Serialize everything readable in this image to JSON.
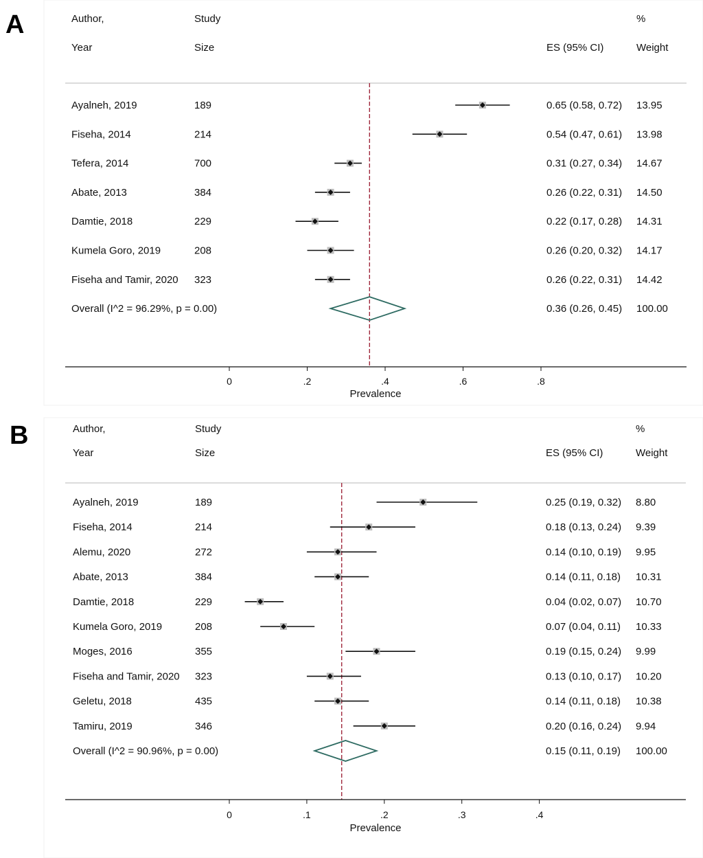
{
  "panels": [
    {
      "letter": "A",
      "headers": {
        "author_line1": "Author,",
        "author_line2": "Year",
        "size_line1": "Study",
        "size_line2": "Size",
        "es": "ES (95% CI)",
        "weight_line1": "%",
        "weight_line2": "Weight"
      },
      "chart_data": {
        "type": "forest",
        "xlabel": "Prevalence",
        "xticks": [
          0,
          0.2,
          0.4,
          0.6,
          0.8
        ],
        "xtick_labels": [
          "0",
          ".2",
          ".4",
          ".6",
          ".8"
        ],
        "reference_line": 0.36,
        "studies": [
          {
            "label": "Ayalneh, 2019",
            "size": "189",
            "es": 0.65,
            "lo": 0.58,
            "hi": 0.72,
            "es_text": "0.65 (0.58, 0.72)",
            "weight": "13.95"
          },
          {
            "label": "Fiseha, 2014",
            "size": "214",
            "es": 0.54,
            "lo": 0.47,
            "hi": 0.61,
            "es_text": "0.54 (0.47, 0.61)",
            "weight": "13.98"
          },
          {
            "label": "Tefera, 2014",
            "size": "700",
            "es": 0.31,
            "lo": 0.27,
            "hi": 0.34,
            "es_text": "0.31 (0.27, 0.34)",
            "weight": "14.67"
          },
          {
            "label": "Abate, 2013",
            "size": "384",
            "es": 0.26,
            "lo": 0.22,
            "hi": 0.31,
            "es_text": "0.26 (0.22, 0.31)",
            "weight": "14.50"
          },
          {
            "label": "Damtie, 2018",
            "size": "229",
            "es": 0.22,
            "lo": 0.17,
            "hi": 0.28,
            "es_text": "0.22 (0.17, 0.28)",
            "weight": "14.31"
          },
          {
            "label": "Kumela Goro, 2019",
            "size": "208",
            "es": 0.26,
            "lo": 0.2,
            "hi": 0.32,
            "es_text": "0.26 (0.20, 0.32)",
            "weight": "14.17"
          },
          {
            "label": "Fiseha and Tamir, 2020",
            "size": "323",
            "es": 0.26,
            "lo": 0.22,
            "hi": 0.31,
            "es_text": "0.26 (0.22, 0.31)",
            "weight": "14.42"
          }
        ],
        "overall": {
          "label": "Overall  (I^2 = 96.29%, p = 0.00)",
          "es": 0.36,
          "lo": 0.26,
          "hi": 0.45,
          "es_text": "0.36 (0.26, 0.45)",
          "weight": "100.00"
        }
      }
    },
    {
      "letter": "B",
      "headers": {
        "author_line1": "Author,",
        "author_line2": "Year",
        "size_line1": "Study",
        "size_line2": "Size",
        "es": "ES (95% CI)",
        "weight_line1": "%",
        "weight_line2": "Weight"
      },
      "chart_data": {
        "type": "forest",
        "xlabel": "Prevalence",
        "xticks": [
          0,
          0.1,
          0.2,
          0.3,
          0.4
        ],
        "xtick_labels": [
          "0",
          ".1",
          ".2",
          ".3",
          ".4"
        ],
        "reference_line": 0.145,
        "studies": [
          {
            "label": "Ayalneh, 2019",
            "size": "189",
            "es": 0.25,
            "lo": 0.19,
            "hi": 0.32,
            "es_text": "0.25 (0.19, 0.32)",
            "weight": "8.80"
          },
          {
            "label": "Fiseha, 2014",
            "size": "214",
            "es": 0.18,
            "lo": 0.13,
            "hi": 0.24,
            "es_text": "0.18 (0.13, 0.24)",
            "weight": "9.39"
          },
          {
            "label": "Alemu, 2020",
            "size": "272",
            "es": 0.14,
            "lo": 0.1,
            "hi": 0.19,
            "es_text": "0.14 (0.10, 0.19)",
            "weight": "9.95"
          },
          {
            "label": "Abate, 2013",
            "size": "384",
            "es": 0.14,
            "lo": 0.11,
            "hi": 0.18,
            "es_text": "0.14 (0.11, 0.18)",
            "weight": "10.31"
          },
          {
            "label": "Damtie, 2018",
            "size": "229",
            "es": 0.04,
            "lo": 0.02,
            "hi": 0.07,
            "es_text": "0.04 (0.02, 0.07)",
            "weight": "10.70"
          },
          {
            "label": "Kumela Goro, 2019",
            "size": "208",
            "es": 0.07,
            "lo": 0.04,
            "hi": 0.11,
            "es_text": "0.07 (0.04, 0.11)",
            "weight": "10.33"
          },
          {
            "label": "Moges, 2016",
            "size": "355",
            "es": 0.19,
            "lo": 0.15,
            "hi": 0.24,
            "es_text": "0.19 (0.15, 0.24)",
            "weight": "9.99"
          },
          {
            "label": "Fiseha and Tamir, 2020",
            "size": "323",
            "es": 0.13,
            "lo": 0.1,
            "hi": 0.17,
            "es_text": "0.13 (0.10, 0.17)",
            "weight": "10.20"
          },
          {
            "label": "Geletu, 2018",
            "size": "435",
            "es": 0.14,
            "lo": 0.11,
            "hi": 0.18,
            "es_text": "0.14 (0.11, 0.18)",
            "weight": "10.38"
          },
          {
            "label": "Tamiru, 2019",
            "size": "346",
            "es": 0.2,
            "lo": 0.16,
            "hi": 0.24,
            "es_text": "0.20 (0.16, 0.24)",
            "weight": "9.94"
          }
        ],
        "overall": {
          "label": "Overall  (I^2 = 90.96%, p = 0.00)",
          "es": 0.15,
          "lo": 0.11,
          "hi": 0.19,
          "es_text": "0.15 (0.11, 0.19)",
          "weight": "100.00"
        }
      }
    }
  ],
  "colors": {
    "reference_line": "#a0283c",
    "diamond": "#2e6b62",
    "weight_box": "#bdbdbd",
    "marker": "#111111"
  }
}
